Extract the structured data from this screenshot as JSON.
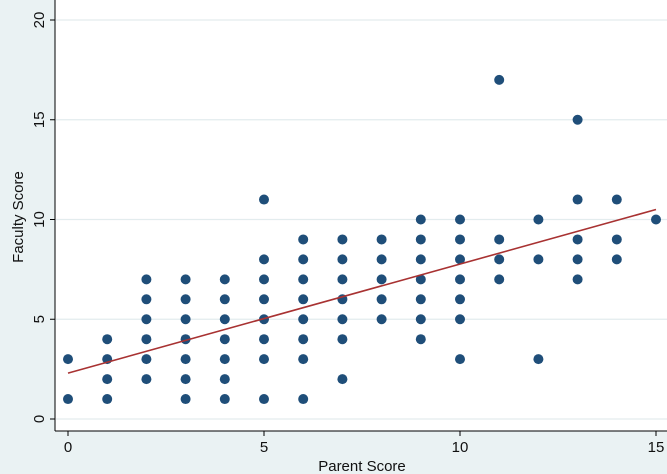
{
  "chart_data": {
    "type": "scatter",
    "title": "",
    "xlabel": "Parent Score",
    "ylabel": "Faculty Score",
    "xlim": [
      0,
      15
    ],
    "ylim": [
      0,
      20
    ],
    "xticks": [
      0,
      5,
      10,
      15
    ],
    "yticks": [
      0,
      5,
      10,
      15,
      20
    ],
    "grid": "horizontal",
    "legend": "none",
    "colors": {
      "background": "#eaf2f3",
      "plot_area": "#ffffff",
      "grid": "#e3ecee",
      "points": "#1f4e79",
      "fit_line": "#a83232",
      "axis": "#000000"
    },
    "series": [
      {
        "kind": "points",
        "points": [
          [
            0,
            1
          ],
          [
            0,
            3
          ],
          [
            1,
            1
          ],
          [
            1,
            2
          ],
          [
            1,
            3
          ],
          [
            1,
            4
          ],
          [
            2,
            2
          ],
          [
            2,
            3
          ],
          [
            2,
            4
          ],
          [
            2,
            5
          ],
          [
            2,
            6
          ],
          [
            2,
            7
          ],
          [
            3,
            1
          ],
          [
            3,
            2
          ],
          [
            3,
            3
          ],
          [
            3,
            4
          ],
          [
            3,
            5
          ],
          [
            3,
            6
          ],
          [
            3,
            7
          ],
          [
            4,
            1
          ],
          [
            4,
            2
          ],
          [
            4,
            3
          ],
          [
            4,
            4
          ],
          [
            4,
            5
          ],
          [
            4,
            6
          ],
          [
            4,
            7
          ],
          [
            5,
            1
          ],
          [
            5,
            3
          ],
          [
            5,
            4
          ],
          [
            5,
            5
          ],
          [
            5,
            6
          ],
          [
            5,
            7
          ],
          [
            5,
            8
          ],
          [
            5,
            11
          ],
          [
            6,
            1
          ],
          [
            6,
            3
          ],
          [
            6,
            4
          ],
          [
            6,
            5
          ],
          [
            6,
            6
          ],
          [
            6,
            7
          ],
          [
            6,
            8
          ],
          [
            6,
            9
          ],
          [
            7,
            2
          ],
          [
            7,
            4
          ],
          [
            7,
            5
          ],
          [
            7,
            6
          ],
          [
            7,
            7
          ],
          [
            7,
            8
          ],
          [
            7,
            9
          ],
          [
            8,
            5
          ],
          [
            8,
            6
          ],
          [
            8,
            7
          ],
          [
            8,
            8
          ],
          [
            8,
            9
          ],
          [
            9,
            4
          ],
          [
            9,
            5
          ],
          [
            9,
            6
          ],
          [
            9,
            7
          ],
          [
            9,
            8
          ],
          [
            9,
            9
          ],
          [
            9,
            10
          ],
          [
            10,
            3
          ],
          [
            10,
            5
          ],
          [
            10,
            6
          ],
          [
            10,
            7
          ],
          [
            10,
            8
          ],
          [
            10,
            9
          ],
          [
            10,
            10
          ],
          [
            11,
            7
          ],
          [
            11,
            8
          ],
          [
            11,
            9
          ],
          [
            11,
            17
          ],
          [
            12,
            3
          ],
          [
            12,
            8
          ],
          [
            12,
            10
          ],
          [
            13,
            7
          ],
          [
            13,
            8
          ],
          [
            13,
            9
          ],
          [
            13,
            11
          ],
          [
            13,
            15
          ],
          [
            14,
            8
          ],
          [
            14,
            9
          ],
          [
            14,
            11
          ],
          [
            15,
            10
          ]
        ]
      },
      {
        "kind": "fit_line",
        "x": [
          0,
          15
        ],
        "y": [
          2.3,
          10.5
        ]
      }
    ]
  }
}
